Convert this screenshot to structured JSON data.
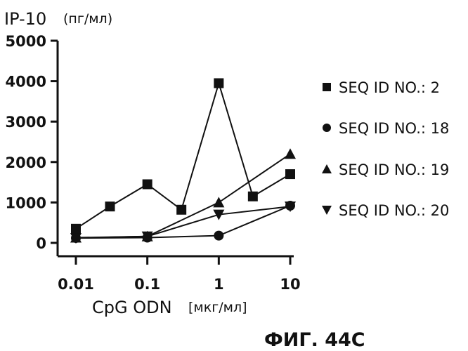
{
  "chart_data": {
    "type": "line",
    "y_axis": {
      "label": "IP-10",
      "unit": "(пг/мл)",
      "range": [
        0,
        5000
      ],
      "ticks": [
        0,
        1000,
        2000,
        3000,
        4000,
        5000
      ],
      "tick_labels": [
        "0",
        "1000",
        "2000",
        "3000",
        "4000",
        "5000"
      ]
    },
    "x_axis": {
      "label": "CpG ODN",
      "unit": "[мкг/мл]",
      "scale": "log",
      "range": [
        0.01,
        10
      ],
      "ticks": [
        0.01,
        0.1,
        1,
        10
      ],
      "tick_labels": [
        "0.01",
        "0.1",
        "1",
        "10"
      ]
    },
    "legend_position": "right",
    "series": [
      {
        "name": "SEQ ID NO.: 2",
        "marker": "square",
        "x": [
          0.01,
          0.03,
          0.1,
          0.3,
          1,
          3,
          10
        ],
        "y": [
          350,
          900,
          1450,
          820,
          3950,
          1150,
          1700
        ]
      },
      {
        "name": "SEQ ID NO.: 18",
        "marker": "circle",
        "x": [
          0.01,
          0.1,
          1,
          10
        ],
        "y": [
          120,
          130,
          180,
          920
        ]
      },
      {
        "name": "SEQ ID NO.: 19",
        "marker": "triangle-up",
        "x": [
          0.01,
          0.1,
          1,
          10
        ],
        "y": [
          130,
          160,
          1000,
          2200
        ]
      },
      {
        "name": "SEQ ID NO.: 20",
        "marker": "triangle-down",
        "x": [
          0.01,
          0.1,
          1,
          10
        ],
        "y": [
          120,
          160,
          700,
          900
        ]
      }
    ]
  },
  "figure_caption": "ФИГ. 44C"
}
